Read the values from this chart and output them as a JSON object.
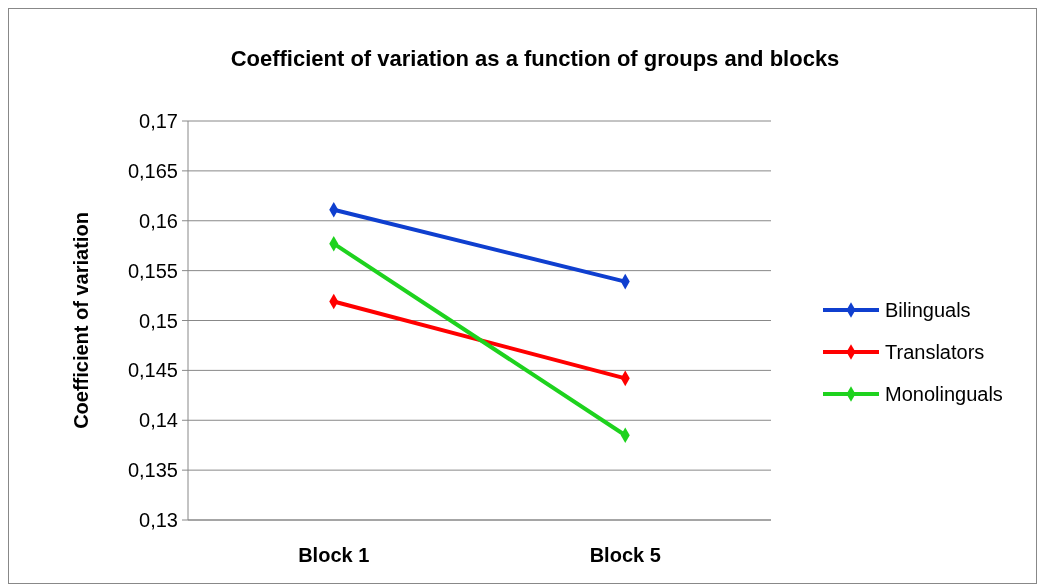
{
  "chart_data": {
    "type": "line",
    "title": "Coefficient of variation as a function of groups and blocks",
    "ylabel": "Coefficient of variation",
    "categories": [
      "Block 1",
      "Block 5"
    ],
    "series": [
      {
        "name": "Bilinguals",
        "color": "#0f3fcf",
        "values": [
          0.1611,
          0.1539
        ]
      },
      {
        "name": "Translators",
        "color": "#ff0000",
        "values": [
          0.1519,
          0.1442
        ]
      },
      {
        "name": "Monolinguals",
        "color": "#1ed21e",
        "values": [
          0.1577,
          0.1385
        ]
      }
    ],
    "ylim": [
      0.13,
      0.17
    ],
    "yticks": [
      {
        "value": 0.13,
        "label": "0,13"
      },
      {
        "value": 0.135,
        "label": "0,135"
      },
      {
        "value": 0.14,
        "label": "0,14"
      },
      {
        "value": 0.145,
        "label": "0,145"
      },
      {
        "value": 0.15,
        "label": "0,15"
      },
      {
        "value": 0.155,
        "label": "0,155"
      },
      {
        "value": 0.16,
        "label": "0,16"
      },
      {
        "value": 0.165,
        "label": "0,165"
      },
      {
        "value": 0.17,
        "label": "0,17"
      }
    ],
    "grid": "y",
    "legend": "right",
    "marker": "diamond",
    "line_style": "solid"
  }
}
